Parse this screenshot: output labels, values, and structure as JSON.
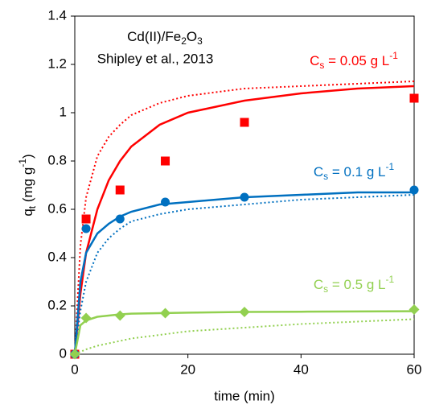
{
  "chart_data": {
    "type": "scatter",
    "title": [
      "Cd(II)/Fe",
      "2",
      "O",
      "3"
    ],
    "subtitle": "Shipley et al., 2013",
    "x_label": "time (min)",
    "y_label": [
      "q",
      "t",
      " (mg g",
      "-1",
      ")"
    ],
    "x": [
      0,
      2,
      8,
      16,
      30,
      60
    ],
    "fit_x": [
      0,
      1,
      2,
      4,
      6,
      8,
      10,
      15,
      20,
      30,
      40,
      50,
      60
    ],
    "xlim": [
      0,
      60
    ],
    "xticks": [
      0,
      20,
      40,
      60
    ],
    "ylim": [
      0,
      1.4
    ],
    "yticks": [
      0,
      0.2,
      0.4,
      0.6,
      0.8,
      1,
      1.2,
      1.4
    ],
    "series": [
      {
        "label": [
          "C",
          "s",
          " = 0.05 g L",
          "-1"
        ],
        "color": "#ff0000",
        "marker": "square",
        "values": [
          0,
          0.56,
          0.68,
          0.8,
          0.96,
          1.06
        ],
        "fit": [
          0,
          0.25,
          0.42,
          0.6,
          0.72,
          0.8,
          0.86,
          0.95,
          1.0,
          1.05,
          1.08,
          1.1,
          1.11
        ],
        "fit_dotted": [
          0,
          0.45,
          0.65,
          0.82,
          0.9,
          0.95,
          0.99,
          1.04,
          1.07,
          1.1,
          1.11,
          1.12,
          1.13
        ]
      },
      {
        "label": [
          "C",
          "s",
          " = 0.1 g L",
          "-1"
        ],
        "color": "#0070c0",
        "marker": "circle",
        "values": [
          0,
          0.52,
          0.56,
          0.63,
          0.65,
          0.68
        ],
        "fit": [
          0,
          0.3,
          0.42,
          0.5,
          0.54,
          0.57,
          0.59,
          0.62,
          0.63,
          0.65,
          0.66,
          0.67,
          0.67
        ],
        "fit_dotted": [
          0,
          0.18,
          0.3,
          0.42,
          0.48,
          0.52,
          0.55,
          0.58,
          0.6,
          0.62,
          0.64,
          0.65,
          0.66
        ]
      },
      {
        "label": [
          "C",
          "s",
          " = 0.5 g L",
          "-1"
        ],
        "color": "#92d050",
        "marker": "diamond",
        "values": [
          0,
          0.15,
          0.16,
          0.17,
          0.175,
          0.185
        ],
        "fit": [
          0,
          0.12,
          0.14,
          0.155,
          0.16,
          0.165,
          0.168,
          0.17,
          0.172,
          0.175,
          0.176,
          0.177,
          0.178
        ],
        "fit_dotted": [
          0,
          0.01,
          0.02,
          0.035,
          0.045,
          0.055,
          0.065,
          0.08,
          0.095,
          0.11,
          0.125,
          0.135,
          0.145
        ]
      }
    ]
  }
}
